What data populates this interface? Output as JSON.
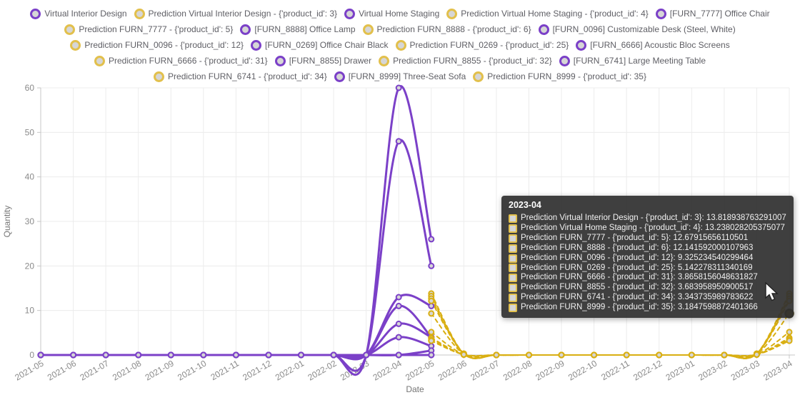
{
  "colors": {
    "purple": "#7B40C8",
    "gold": "#D9AF12",
    "gold_light": "#E2C04C",
    "grid": "#ececec",
    "axis": "#c7c7c7",
    "tick_text": "#8a8a8a",
    "axis_name": "#757575"
  },
  "legend": {
    "rows": [
      [
        {
          "label": "Virtual Interior Design",
          "color": "purple"
        },
        {
          "label": "Prediction Virtual Interior Design - {'product_id': 3}",
          "color": "gold"
        },
        {
          "label": "Virtual Home Staging",
          "color": "purple"
        },
        {
          "label": "Prediction Virtual Home Staging - {'product_id': 4}",
          "color": "gold"
        },
        {
          "label": "[FURN_7777] Office Chair",
          "color": "purple"
        }
      ],
      [
        {
          "label": "Prediction FURN_7777 - {'product_id': 5}",
          "color": "gold"
        },
        {
          "label": "[FURN_8888] Office Lamp",
          "color": "purple"
        },
        {
          "label": "Prediction FURN_8888 - {'product_id': 6}",
          "color": "gold"
        },
        {
          "label": "[FURN_0096] Customizable Desk (Steel, White)",
          "color": "purple"
        }
      ],
      [
        {
          "label": "Prediction FURN_0096 - {'product_id': 12}",
          "color": "gold"
        },
        {
          "label": "[FURN_0269] Office Chair Black",
          "color": "purple"
        },
        {
          "label": "Prediction FURN_0269 - {'product_id': 25}",
          "color": "gold"
        },
        {
          "label": "[FURN_6666] Acoustic Bloc Screens",
          "color": "purple"
        }
      ],
      [
        {
          "label": "Prediction FURN_6666 - {'product_id': 31}",
          "color": "gold"
        },
        {
          "label": "[FURN_8855] Drawer",
          "color": "purple"
        },
        {
          "label": "Prediction FURN_8855 - {'product_id': 32}",
          "color": "gold"
        },
        {
          "label": "[FURN_6741] Large Meeting Table",
          "color": "purple"
        }
      ],
      [
        {
          "label": "Prediction FURN_6741 - {'product_id': 34}",
          "color": "gold"
        },
        {
          "label": "[FURN_8999] Three-Seat Sofa",
          "color": "purple"
        },
        {
          "label": "Prediction FURN_8999 - {'product_id': 35}",
          "color": "gold"
        }
      ]
    ]
  },
  "tooltip": {
    "title": "2023-04",
    "items": [
      {
        "label": "Prediction Virtual Interior Design - {'product_id': 3}",
        "value": "13.818938763291007"
      },
      {
        "label": "Prediction Virtual Home Staging - {'product_id': 4}",
        "value": "13.238028205375077"
      },
      {
        "label": "Prediction FURN_7777 - {'product_id': 5}",
        "value": "12.67915656110501"
      },
      {
        "label": "Prediction FURN_8888 - {'product_id': 6}",
        "value": "12.141592000107963"
      },
      {
        "label": "Prediction FURN_0096 - {'product_id': 12}",
        "value": "9.325234540299464"
      },
      {
        "label": "Prediction FURN_0269 - {'product_id': 25}",
        "value": "5.142278311340169"
      },
      {
        "label": "Prediction FURN_6666 - {'product_id': 31}",
        "value": "3.8658156048631827"
      },
      {
        "label": "Prediction FURN_8855 - {'product_id': 32}",
        "value": "3.683958950900517"
      },
      {
        "label": "Prediction FURN_6741 - {'product_id': 34}",
        "value": "3.343735989783622"
      },
      {
        "label": "Prediction FURN_8999 - {'product_id': 35}",
        "value": "3.1847598872401366"
      }
    ]
  },
  "chart_data": {
    "type": "line",
    "x": [
      "2021-05",
      "2021-06",
      "2021-07",
      "2021-08",
      "2021-09",
      "2021-10",
      "2021-11",
      "2021-12",
      "2022-01",
      "2022-02",
      "2022-03",
      "2022-04",
      "2022-05",
      "2022-06",
      "2022-07",
      "2022-08",
      "2022-09",
      "2022-10",
      "2022-11",
      "2022-12",
      "2023-01",
      "2023-02",
      "2023-03",
      "2023-04"
    ],
    "xlabel": "Date",
    "ylabel": "Quantity",
    "ylim": [
      0,
      60
    ],
    "yticks": [
      0,
      10,
      20,
      30,
      40,
      50,
      60
    ],
    "grid": true,
    "legend_position": "top",
    "smooth": true,
    "hovered_point": {
      "series": "Prediction FURN_0096 - {'product_id': 12}",
      "x": "2023-04",
      "value": 9.325234540299464
    },
    "series": [
      {
        "name": "Virtual Interior Design",
        "color": "purple",
        "dash": false,
        "values": [
          0,
          0,
          0,
          0,
          0,
          0,
          0,
          0,
          0,
          0,
          0,
          60,
          26,
          null,
          null,
          null,
          null,
          null,
          null,
          null,
          null,
          null,
          null,
          null
        ]
      },
      {
        "name": "Virtual Home Staging",
        "color": "purple",
        "dash": false,
        "values": [
          0,
          0,
          0,
          0,
          0,
          0,
          0,
          0,
          0,
          0,
          0,
          48,
          20,
          null,
          null,
          null,
          null,
          null,
          null,
          null,
          null,
          null,
          null,
          null
        ]
      },
      {
        "name": "[FURN_7777] Office Chair",
        "color": "purple",
        "dash": false,
        "values": [
          0,
          0,
          0,
          0,
          0,
          0,
          0,
          0,
          0,
          0,
          0,
          13,
          11,
          null,
          null,
          null,
          null,
          null,
          null,
          null,
          null,
          null,
          null,
          null
        ]
      },
      {
        "name": "[FURN_8888] Office Lamp",
        "color": "purple",
        "dash": false,
        "values": [
          0,
          0,
          0,
          0,
          0,
          0,
          0,
          0,
          0,
          0,
          0,
          11,
          4,
          null,
          null,
          null,
          null,
          null,
          null,
          null,
          null,
          null,
          null,
          null
        ]
      },
      {
        "name": "[FURN_0096] Customizable Desk (Steel, White)",
        "color": "purple",
        "dash": false,
        "values": [
          0,
          0,
          0,
          0,
          0,
          0,
          0,
          0,
          0,
          0,
          0,
          7,
          4,
          null,
          null,
          null,
          null,
          null,
          null,
          null,
          null,
          null,
          null,
          null
        ]
      },
      {
        "name": "[FURN_0269] Office Chair Black",
        "color": "purple",
        "dash": false,
        "values": [
          0,
          0,
          0,
          0,
          0,
          0,
          0,
          0,
          0,
          0,
          0,
          4,
          2,
          null,
          null,
          null,
          null,
          null,
          null,
          null,
          null,
          null,
          null,
          null
        ]
      },
      {
        "name": "[FURN_6666] Acoustic Bloc Screens",
        "color": "purple",
        "dash": false,
        "values": [
          0,
          0,
          0,
          0,
          0,
          0,
          0,
          0,
          0,
          0,
          0,
          0,
          1,
          null,
          null,
          null,
          null,
          null,
          null,
          null,
          null,
          null,
          null,
          null
        ]
      },
      {
        "name": "[FURN_8855] Drawer",
        "color": "purple",
        "dash": false,
        "values": [
          0,
          0,
          0,
          0,
          0,
          0,
          0,
          0,
          0,
          0,
          0,
          0,
          0,
          null,
          null,
          null,
          null,
          null,
          null,
          null,
          null,
          null,
          null,
          null
        ]
      },
      {
        "name": "[FURN_6741] Large Meeting Table",
        "color": "purple",
        "dash": false,
        "values": [
          0,
          0,
          0,
          0,
          0,
          0,
          0,
          0,
          0,
          0,
          0,
          0,
          0,
          null,
          null,
          null,
          null,
          null,
          null,
          null,
          null,
          null,
          null,
          null
        ]
      },
      {
        "name": "[FURN_8999] Three-Seat Sofa",
        "color": "purple",
        "dash": false,
        "values": [
          0,
          0,
          0,
          0,
          0,
          0,
          0,
          0,
          0,
          0,
          0,
          0,
          0,
          null,
          null,
          null,
          null,
          null,
          null,
          null,
          null,
          null,
          null,
          null
        ]
      },
      {
        "name": "Prediction Virtual Interior Design - {'product_id': 3}",
        "color": "gold",
        "dash": true,
        "values": [
          null,
          null,
          null,
          null,
          null,
          null,
          null,
          null,
          null,
          null,
          null,
          null,
          13.819,
          0.3,
          0,
          0,
          0,
          0,
          0,
          0,
          0,
          0,
          0.3,
          13.818938763291007
        ]
      },
      {
        "name": "Prediction Virtual Home Staging - {'product_id': 4}",
        "color": "gold",
        "dash": true,
        "values": [
          null,
          null,
          null,
          null,
          null,
          null,
          null,
          null,
          null,
          null,
          null,
          null,
          13.238,
          0.3,
          0,
          0,
          0,
          0,
          0,
          0,
          0,
          0,
          0.3,
          13.238028205375077
        ]
      },
      {
        "name": "Prediction FURN_7777 - {'product_id': 5}",
        "color": "gold",
        "dash": true,
        "values": [
          null,
          null,
          null,
          null,
          null,
          null,
          null,
          null,
          null,
          null,
          null,
          null,
          12.679,
          0.25,
          0,
          0,
          0,
          0,
          0,
          0,
          0,
          0,
          0.25,
          12.67915656110501
        ]
      },
      {
        "name": "Prediction FURN_8888 - {'product_id': 6}",
        "color": "gold",
        "dash": true,
        "values": [
          null,
          null,
          null,
          null,
          null,
          null,
          null,
          null,
          null,
          null,
          null,
          null,
          12.142,
          0.25,
          0,
          0,
          0,
          0,
          0,
          0,
          0,
          0,
          0.25,
          12.141592000107963
        ]
      },
      {
        "name": "Prediction FURN_0096 - {'product_id': 12}",
        "color": "gold",
        "dash": true,
        "values": [
          null,
          null,
          null,
          null,
          null,
          null,
          null,
          null,
          null,
          null,
          null,
          null,
          9.325,
          0.2,
          0,
          0,
          0,
          0,
          0,
          0,
          0,
          0,
          0.2,
          9.325234540299464
        ]
      },
      {
        "name": "Prediction FURN_0269 - {'product_id': 25}",
        "color": "gold",
        "dash": true,
        "values": [
          null,
          null,
          null,
          null,
          null,
          null,
          null,
          null,
          null,
          null,
          null,
          null,
          5.142,
          0.15,
          0,
          0,
          0,
          0,
          0,
          0,
          0,
          0,
          0.15,
          5.142278311340169
        ]
      },
      {
        "name": "Prediction FURN_6666 - {'product_id': 31}",
        "color": "gold",
        "dash": true,
        "values": [
          null,
          null,
          null,
          null,
          null,
          null,
          null,
          null,
          null,
          null,
          null,
          null,
          3.866,
          0.1,
          0,
          0,
          0,
          0,
          0,
          0,
          0,
          0,
          0.1,
          3.8658156048631827
        ]
      },
      {
        "name": "Prediction FURN_8855 - {'product_id': 32}",
        "color": "gold",
        "dash": true,
        "values": [
          null,
          null,
          null,
          null,
          null,
          null,
          null,
          null,
          null,
          null,
          null,
          null,
          3.684,
          0.1,
          0,
          0,
          0,
          0,
          0,
          0,
          0,
          0,
          0.1,
          3.683958950900517
        ]
      },
      {
        "name": "Prediction FURN_6741 - {'product_id': 34}",
        "color": "gold",
        "dash": true,
        "values": [
          null,
          null,
          null,
          null,
          null,
          null,
          null,
          null,
          null,
          null,
          null,
          null,
          3.344,
          0.1,
          0,
          0,
          0,
          0,
          0,
          0,
          0,
          0,
          0.1,
          3.343735989783622
        ]
      },
      {
        "name": "Prediction FURN_8999 - {'product_id': 35}",
        "color": "gold",
        "dash": true,
        "values": [
          null,
          null,
          null,
          null,
          null,
          null,
          null,
          null,
          null,
          null,
          null,
          null,
          3.185,
          0.1,
          0,
          0,
          0,
          0,
          0,
          0,
          0,
          0,
          0.1,
          3.1847598872401366
        ]
      }
    ]
  }
}
